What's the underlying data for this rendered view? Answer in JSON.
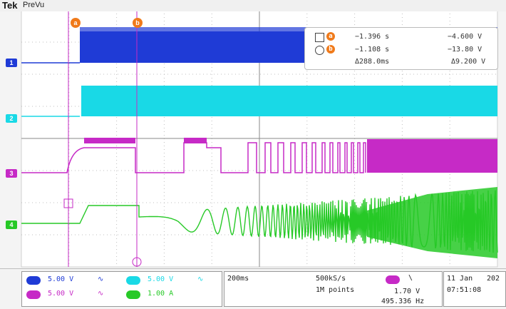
{
  "header": {
    "brand": "Tek",
    "mode": "PreVu"
  },
  "cursors": {
    "a_label": "a",
    "b_label": "b"
  },
  "measurements": {
    "a": {
      "time": "−1.396 s",
      "volt": "−4.600 V"
    },
    "b": {
      "time": "−1.108 s",
      "volt": "−13.80 V"
    },
    "delta": {
      "time": "Δ288.0ms",
      "volt": "Δ9.200 V"
    }
  },
  "channels": [
    {
      "id": "1",
      "scale": "5.00 V",
      "color": "#1f3bd6"
    },
    {
      "id": "2",
      "scale": "5.00 V",
      "color": "#19d9e6"
    },
    {
      "id": "3",
      "scale": "5.00 V",
      "color": "#c62ac6"
    },
    {
      "id": "4",
      "scale": "1.00 A",
      "color": "#27c927"
    }
  ],
  "bottom": {
    "timebase": "200ms",
    "sample_rate": "500kS/s",
    "record": "1M points",
    "trigger_level": "1.70 V",
    "frequency": "495.336 Hz",
    "date": "11 Jan",
    "year": "202",
    "time": "07:51:08"
  }
}
